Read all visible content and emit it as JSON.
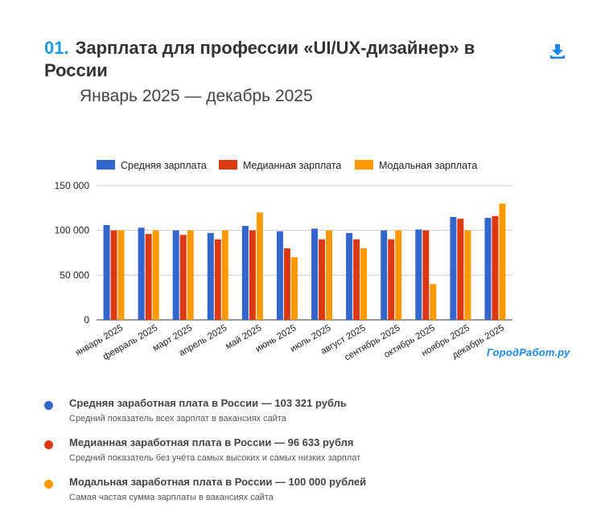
{
  "header": {
    "number": "01.",
    "title": "Зарплата для профессии «UI/UX-дизайнер» в России",
    "subtitle": "Январь 2025 — декабрь 2025",
    "download_icon": "download-icon"
  },
  "brand": "ГородРабот.ру",
  "chart_data": {
    "type": "bar",
    "title": "",
    "xlabel": "",
    "ylabel": "",
    "ylim": [
      0,
      150000
    ],
    "yticks": [
      0,
      50000,
      100000,
      150000
    ],
    "ytick_labels": [
      "0",
      "50 000",
      "100 000",
      "150 000"
    ],
    "grid": true,
    "legend_position": "top",
    "categories": [
      "январь 2025",
      "февраль 2025",
      "март 2025",
      "апрель 2025",
      "май 2025",
      "июнь 2025",
      "июль 2025",
      "август 2025",
      "сентябрь 2025",
      "октябрь 2025",
      "ноябрь 2025",
      "декабрь 2025"
    ],
    "series": [
      {
        "name": "Средняя зарплата",
        "color": "#3366cc",
        "values": [
          106000,
          103000,
          100000,
          97000,
          105000,
          99000,
          102000,
          97000,
          100000,
          101000,
          115000,
          114000
        ]
      },
      {
        "name": "Медианная зарплата",
        "color": "#dc3912",
        "values": [
          100000,
          96000,
          95000,
          90000,
          100000,
          80000,
          90000,
          90000,
          90000,
          100000,
          113000,
          116000
        ]
      },
      {
        "name": "Модальная зарплата",
        "color": "#ff9900",
        "values": [
          100000,
          100000,
          100000,
          100000,
          120000,
          70000,
          100000,
          80000,
          100000,
          40000,
          100000,
          130000
        ]
      }
    ]
  },
  "legend_list": [
    {
      "color": "#3366cc",
      "label": "Средняя заработная плата в России — 103 321 рубль",
      "description": "Средний показатель всех зарплат в вакансиях сайта"
    },
    {
      "color": "#dc3912",
      "label": "Медианная заработная плата в России — 96 633 рубля",
      "description": "Средний показатель без учёта самых высоких и самых низких зарплат"
    },
    {
      "color": "#ff9900",
      "label": "Модальная заработная плата в России — 100 000 рублей",
      "description": "Самая частая сумма зарплаты в вакансиях сайта"
    }
  ]
}
